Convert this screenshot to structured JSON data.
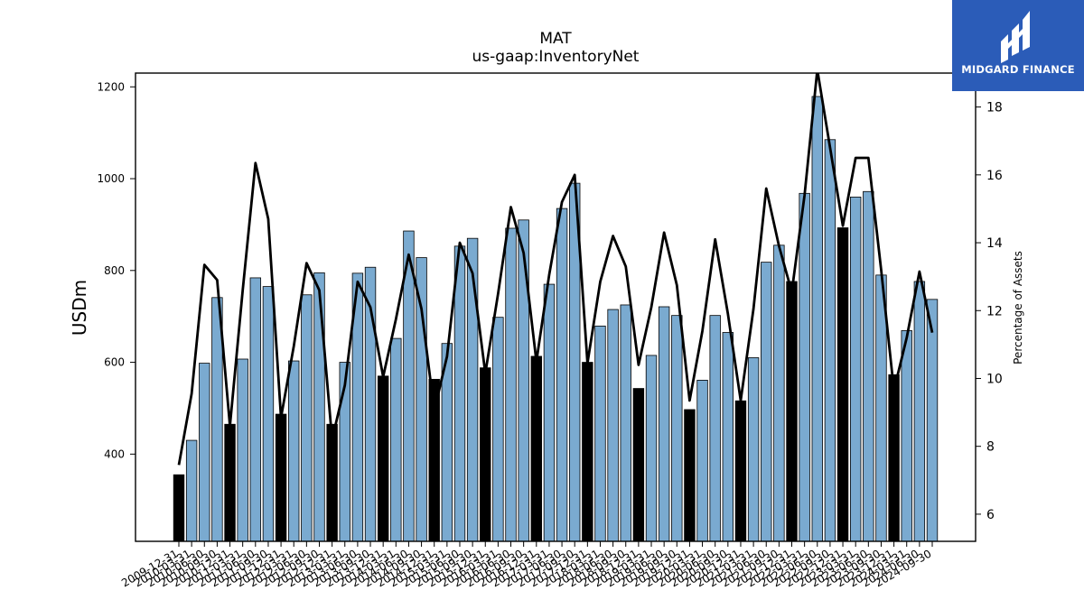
{
  "chart_data": {
    "type": "bar",
    "title": "MAT",
    "subtitle": "us-gaap:InventoryNet",
    "ylabel": "USDm",
    "y2label": "Percentage of Assets",
    "ylim": [
      210,
      1230
    ],
    "y2lim": [
      5.2,
      19.0
    ],
    "yticks": [
      400,
      600,
      800,
      1000,
      1200
    ],
    "y2ticks": [
      6,
      8,
      10,
      12,
      14,
      16,
      18
    ],
    "grid": false,
    "categories": [
      "2009-12-31",
      "2010-03-31",
      "2010-06-30",
      "2010-09-30",
      "2010-12-31",
      "2011-03-31",
      "2011-06-30",
      "2011-09-30",
      "2011-12-31",
      "2012-03-31",
      "2012-06-30",
      "2012-09-30",
      "2012-12-31",
      "2013-03-31",
      "2013-06-30",
      "2013-09-30",
      "2013-12-31",
      "2014-03-31",
      "2014-06-30",
      "2014-09-30",
      "2014-12-31",
      "2015-03-31",
      "2015-06-30",
      "2015-09-30",
      "2015-12-31",
      "2016-03-31",
      "2016-06-30",
      "2016-09-30",
      "2016-12-31",
      "2017-03-31",
      "2017-06-30",
      "2017-09-30",
      "2017-12-31",
      "2018-03-31",
      "2018-06-30",
      "2018-09-30",
      "2018-12-31",
      "2019-03-31",
      "2019-06-30",
      "2019-09-30",
      "2019-12-31",
      "2020-03-31",
      "2020-06-30",
      "2020-09-30",
      "2020-12-31",
      "2021-03-31",
      "2021-06-30",
      "2021-09-30",
      "2021-12-31",
      "2022-03-31",
      "2022-06-30",
      "2022-09-30",
      "2022-12-31",
      "2023-03-31",
      "2023-06-30",
      "2023-09-30",
      "2023-12-31",
      "2024-03-31",
      "2024-06-30",
      "2024-09-30"
    ],
    "series": [
      {
        "type": "bar",
        "values": [
          355,
          430,
          598,
          741,
          465,
          607,
          784,
          765,
          487,
          603,
          747,
          795,
          465,
          600,
          794,
          807,
          570,
          652,
          886,
          828,
          563,
          641,
          853,
          870,
          588,
          698,
          892,
          910,
          613,
          770,
          935,
          990,
          600,
          679,
          715,
          725,
          543,
          615,
          721,
          702,
          497,
          561,
          702,
          665,
          516,
          610,
          818,
          855,
          776,
          968,
          1179,
          1085,
          893,
          960,
          972,
          790,
          573,
          669,
          776,
          737
        ],
        "highlight_color": "#000000",
        "color": "#7aaad0"
      },
      {
        "type": "line",
        "axis": "right",
        "color": "#000000",
        "values": [
          7.45,
          9.55,
          13.35,
          12.9,
          8.6,
          12.6,
          16.35,
          14.7,
          8.85,
          10.95,
          13.4,
          12.6,
          8.2,
          9.8,
          12.85,
          12.1,
          10.05,
          11.75,
          13.65,
          12.05,
          9.05,
          10.65,
          14.0,
          13.1,
          10.15,
          12.5,
          15.05,
          13.7,
          10.5,
          13.05,
          15.2,
          16.0,
          10.45,
          12.85,
          14.2,
          13.3,
          10.4,
          12.1,
          14.3,
          12.75,
          9.35,
          11.4,
          14.1,
          11.9,
          9.35,
          12.05,
          15.6,
          13.9,
          12.55,
          15.4,
          19.1,
          16.8,
          14.5,
          16.5,
          16.5,
          13.2,
          9.65,
          11.2,
          13.15,
          11.35
        ]
      }
    ]
  },
  "logo": {
    "text": "MIDGARD FINANCE",
    "bg_color": "#2b5cb8"
  }
}
